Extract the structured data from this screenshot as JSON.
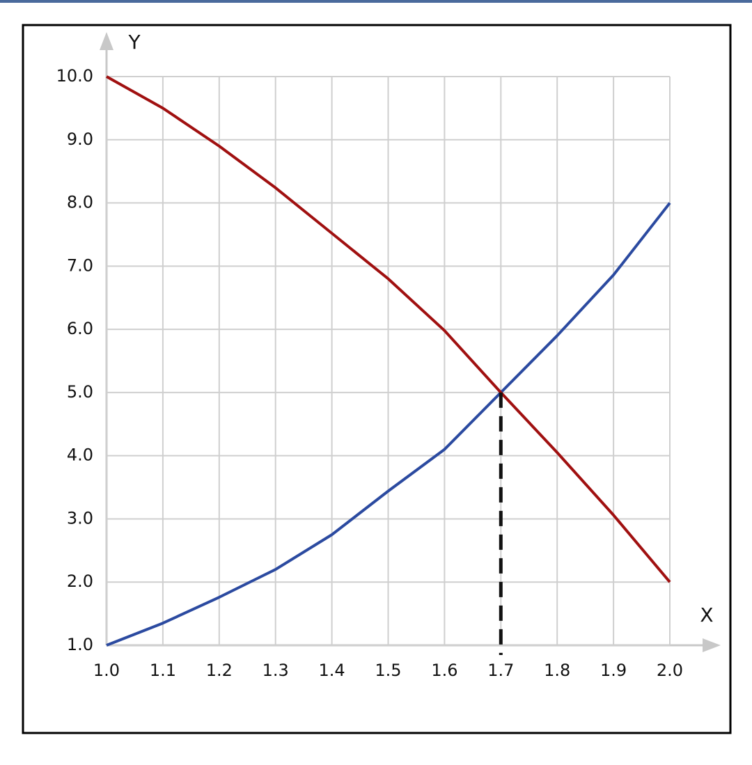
{
  "chart_data": {
    "type": "line",
    "x_label": "X",
    "y_label": "Y",
    "x": [
      1.0,
      1.1,
      1.2,
      1.3,
      1.4,
      1.5,
      1.6,
      1.7,
      1.8,
      1.9,
      2.0
    ],
    "series": [
      {
        "color": "#2b4aa0",
        "values": [
          1.0,
          1.35,
          1.76,
          2.2,
          2.75,
          3.44,
          4.1,
          5.0,
          5.9,
          6.86,
          8.0
        ]
      },
      {
        "color": "#a01010",
        "values": [
          10.0,
          9.5,
          8.9,
          8.24,
          7.52,
          6.8,
          5.98,
          5.0,
          4.05,
          3.06,
          2.0
        ]
      }
    ],
    "drop_line": {
      "x": 1.7,
      "y": 5.0
    },
    "xlim": [
      1.0,
      2.0
    ],
    "ylim": [
      1.0,
      10.0
    ],
    "xticks": [
      {
        "value": 1,
        "label": "1.0"
      },
      1.1,
      1.2,
      1.3,
      1.4,
      1.5,
      1.6,
      1.7,
      1.8,
      1.9,
      {
        "value": 2,
        "label": "2.0"
      }
    ],
    "yticks": [
      {
        "value": 1,
        "label": "1.0"
      },
      {
        "value": 2,
        "label": "2.0"
      },
      {
        "value": 3,
        "label": "3.0"
      },
      {
        "value": 4,
        "label": "4.0"
      },
      {
        "value": 5,
        "label": "5.0"
      },
      {
        "value": 6,
        "label": "6.0"
      },
      {
        "value": 7,
        "label": "7.0"
      },
      {
        "value": 8,
        "label": "8.0"
      },
      {
        "value": 9,
        "label": "9.0"
      },
      {
        "value": 10,
        "label": "10.0"
      }
    ],
    "grid": true
  }
}
